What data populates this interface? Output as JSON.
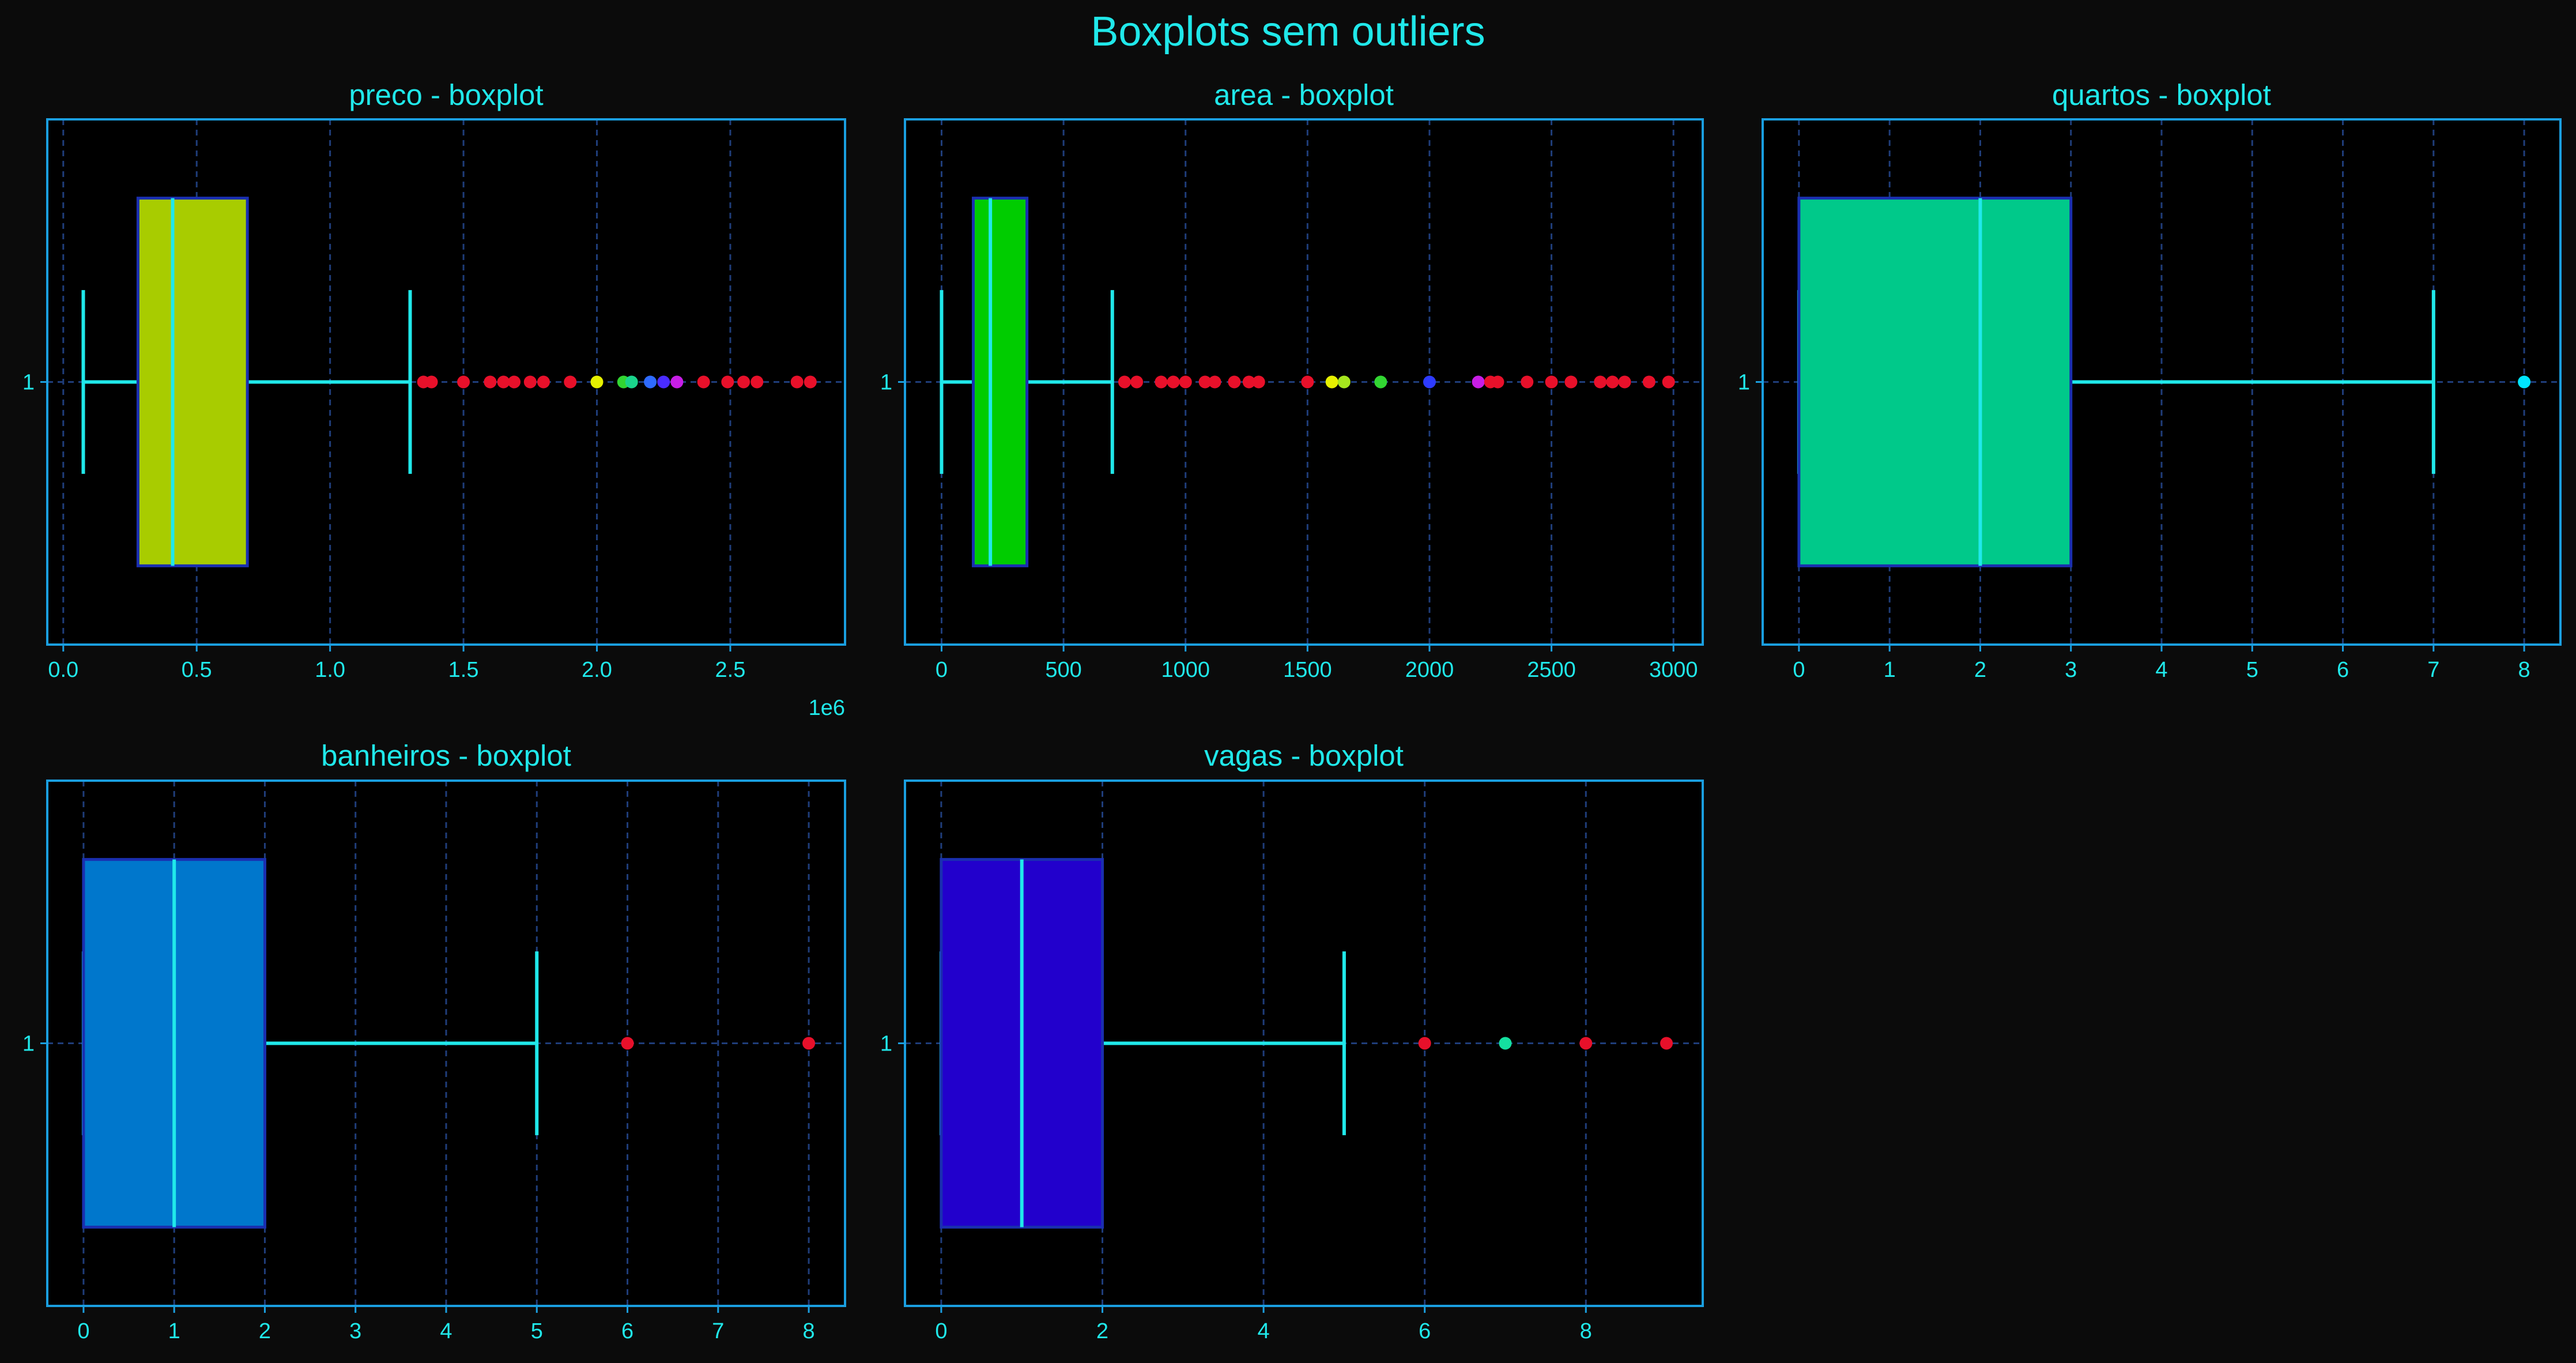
{
  "figure": {
    "title": "Boxplots sem outliers",
    "background": "#0b0b0b",
    "axes_background": "#000000",
    "axis_color": "#1a9fe0",
    "text_color": "#20e8ea",
    "grid_color": "#1f3d7a"
  },
  "chart_data": [
    {
      "type": "box",
      "title": "preco - boxplot",
      "orientation": "horizontal",
      "category": "1",
      "xlim": [
        -60000,
        2930000
      ],
      "xticks": [
        0,
        500000,
        1000000,
        1500000,
        2000000,
        2500000
      ],
      "xtick_labels": [
        "0.0",
        "0.5",
        "1.0",
        "1.5",
        "2.0",
        "2.5"
      ],
      "x_offset_label": "1e6",
      "grid": true,
      "box_color": "#a8cc00",
      "box": {
        "whislo": 75000,
        "q1": 280000,
        "med": 410000,
        "q3": 690000,
        "whishi": 1300000
      },
      "fliers": [
        {
          "x": 1350000,
          "color": "#e8102a"
        },
        {
          "x": 1380000,
          "color": "#e8102a"
        },
        {
          "x": 1500000,
          "color": "#e8102a"
        },
        {
          "x": 1600000,
          "color": "#e8102a"
        },
        {
          "x": 1650000,
          "color": "#e8102a"
        },
        {
          "x": 1690000,
          "color": "#e8102a"
        },
        {
          "x": 1750000,
          "color": "#e8102a"
        },
        {
          "x": 1800000,
          "color": "#e8102a"
        },
        {
          "x": 1900000,
          "color": "#e8102a"
        },
        {
          "x": 2000000,
          "color": "#e6f000"
        },
        {
          "x": 2100000,
          "color": "#32d632"
        },
        {
          "x": 2130000,
          "color": "#1ad48c"
        },
        {
          "x": 2200000,
          "color": "#2e6bff"
        },
        {
          "x": 2250000,
          "color": "#4a2cff"
        },
        {
          "x": 2300000,
          "color": "#c81ee6"
        },
        {
          "x": 2400000,
          "color": "#e8102a"
        },
        {
          "x": 2490000,
          "color": "#e8102a"
        },
        {
          "x": 2550000,
          "color": "#e8102a"
        },
        {
          "x": 2600000,
          "color": "#e8102a"
        },
        {
          "x": 2750000,
          "color": "#e8102a"
        },
        {
          "x": 2800000,
          "color": "#e8102a"
        }
      ]
    },
    {
      "type": "box",
      "title": "area - boxplot",
      "orientation": "horizontal",
      "category": "1",
      "xlim": [
        -150,
        3120
      ],
      "xticks": [
        0,
        500,
        1000,
        1500,
        2000,
        2500,
        3000
      ],
      "xtick_labels": [
        "0",
        "500",
        "1000",
        "1500",
        "2000",
        "2500",
        "3000"
      ],
      "grid": true,
      "box_color": "#00cc00",
      "box": {
        "whislo": 0,
        "q1": 130,
        "med": 200,
        "q3": 350,
        "whishi": 700
      },
      "fliers": [
        {
          "x": 750,
          "color": "#e8102a"
        },
        {
          "x": 800,
          "color": "#e8102a"
        },
        {
          "x": 900,
          "color": "#e8102a"
        },
        {
          "x": 950,
          "color": "#e8102a"
        },
        {
          "x": 1000,
          "color": "#e8102a"
        },
        {
          "x": 1080,
          "color": "#e8102a"
        },
        {
          "x": 1120,
          "color": "#e8102a"
        },
        {
          "x": 1200,
          "color": "#e8102a"
        },
        {
          "x": 1260,
          "color": "#e8102a"
        },
        {
          "x": 1300,
          "color": "#e8102a"
        },
        {
          "x": 1500,
          "color": "#e8102a"
        },
        {
          "x": 1600,
          "color": "#e6f000"
        },
        {
          "x": 1650,
          "color": "#a6e61e"
        },
        {
          "x": 1800,
          "color": "#32d632"
        },
        {
          "x": 2000,
          "color": "#2e3bff"
        },
        {
          "x": 2200,
          "color": "#c81ee6"
        },
        {
          "x": 2250,
          "color": "#e8102a"
        },
        {
          "x": 2280,
          "color": "#e8102a"
        },
        {
          "x": 2400,
          "color": "#e8102a"
        },
        {
          "x": 2500,
          "color": "#e8102a"
        },
        {
          "x": 2580,
          "color": "#e8102a"
        },
        {
          "x": 2700,
          "color": "#e8102a"
        },
        {
          "x": 2750,
          "color": "#e8102a"
        },
        {
          "x": 2800,
          "color": "#e8102a"
        },
        {
          "x": 2900,
          "color": "#e8102a"
        },
        {
          "x": 2980,
          "color": "#e8102a"
        }
      ]
    },
    {
      "type": "box",
      "title": "quartos - boxplot",
      "orientation": "horizontal",
      "category": "1",
      "xlim": [
        -0.4,
        8.4
      ],
      "xticks": [
        0,
        1,
        2,
        3,
        4,
        5,
        6,
        7,
        8
      ],
      "xtick_labels": [
        "0",
        "1",
        "2",
        "3",
        "4",
        "5",
        "6",
        "7",
        "8"
      ],
      "grid": true,
      "box_color": "#00c98a",
      "box": {
        "whislo": 0,
        "q1": 0,
        "med": 2,
        "q3": 3,
        "whishi": 7
      },
      "fliers": [
        {
          "x": 8,
          "color": "#00e5ff"
        }
      ]
    },
    {
      "type": "box",
      "title": "banheiros - boxplot",
      "orientation": "horizontal",
      "category": "1",
      "xlim": [
        -0.4,
        8.4
      ],
      "xticks": [
        0,
        1,
        2,
        3,
        4,
        5,
        6,
        7,
        8
      ],
      "xtick_labels": [
        "0",
        "1",
        "2",
        "3",
        "4",
        "5",
        "6",
        "7",
        "8"
      ],
      "grid": true,
      "box_color": "#0077cc",
      "box": {
        "whislo": 0,
        "q1": 0,
        "med": 1,
        "q3": 2,
        "whishi": 5
      },
      "fliers": [
        {
          "x": 6,
          "color": "#e8102a"
        },
        {
          "x": 8,
          "color": "#e8102a"
        }
      ]
    },
    {
      "type": "box",
      "title": "vagas - boxplot",
      "orientation": "horizontal",
      "category": "1",
      "xlim": [
        -0.45,
        9.45
      ],
      "xticks": [
        0,
        2,
        4,
        6,
        8
      ],
      "xtick_labels": [
        "0",
        "2",
        "4",
        "6",
        "8"
      ],
      "grid": true,
      "box_color": "#2200cc",
      "box": {
        "whislo": 0,
        "q1": 0,
        "med": 1,
        "q3": 2,
        "whishi": 5
      },
      "fliers": [
        {
          "x": 6,
          "color": "#e8102a"
        },
        {
          "x": 7,
          "color": "#14e0a0"
        },
        {
          "x": 8,
          "color": "#e8102a"
        },
        {
          "x": 9,
          "color": "#e8102a"
        }
      ]
    }
  ]
}
